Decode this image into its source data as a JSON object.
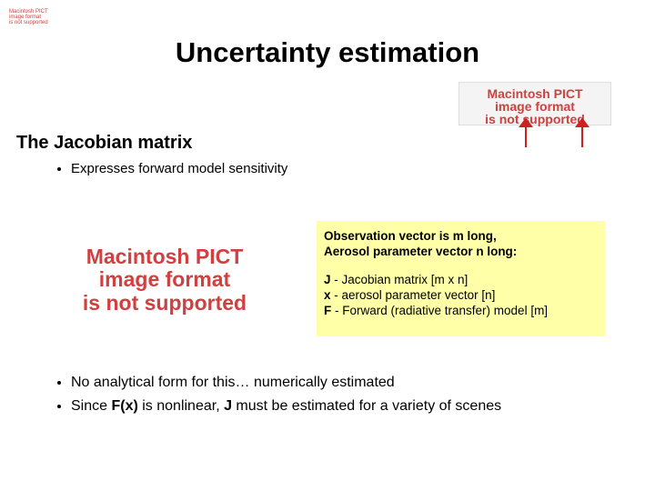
{
  "title": "Uncertainty estimation",
  "pict_placeholders": [
    {
      "lines": [
        "Macintosh PICT",
        "image format",
        "is not supported"
      ]
    },
    {
      "lines": [
        "Macintosh PICT",
        "image format",
        "is not supported"
      ]
    },
    {
      "lines": [
        "Macintosh PICT",
        "image format",
        "is not supported"
      ]
    }
  ],
  "section_heading": "The Jacobian matrix",
  "bullets_top": [
    {
      "runs": [
        {
          "text": "Expresses forward model sensitivity"
        }
      ]
    }
  ],
  "info_box": {
    "intro": [
      "Observation vector is m long,",
      "Aerosol parameter vector n long:"
    ],
    "definitions": [
      {
        "symbol": "J",
        "text": " - Jacobian matrix [m x n]"
      },
      {
        "symbol": "x",
        "text": " - aerosol parameter vector [n]"
      },
      {
        "symbol": "F",
        "text": " - Forward (radiative transfer) model [m]"
      }
    ]
  },
  "bullets_bottom": [
    {
      "runs": [
        {
          "text": "No analytical form for this… numerically estimated"
        }
      ]
    },
    {
      "runs": [
        {
          "text": "Since "
        },
        {
          "text": "F(x)",
          "bold": true
        },
        {
          "text": " is nonlinear, "
        },
        {
          "text": "J",
          "bold": true
        },
        {
          "text": " must be estimated for a variety of scenes"
        }
      ]
    }
  ]
}
